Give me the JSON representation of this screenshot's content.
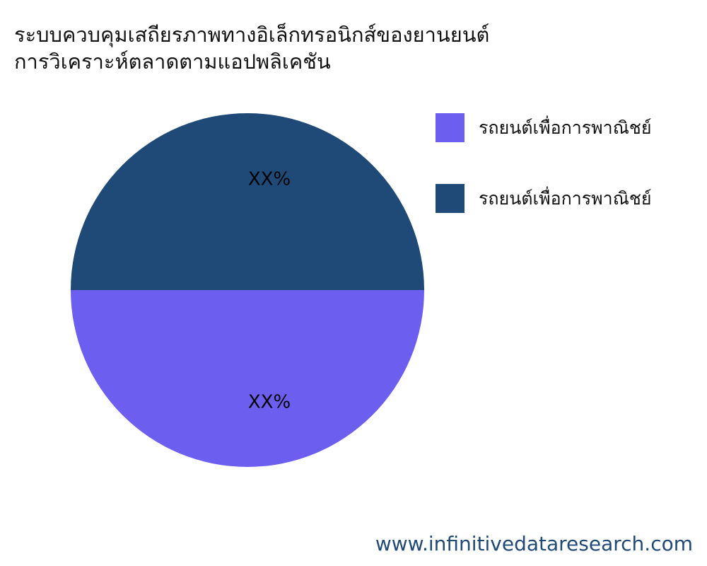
{
  "chart_data": {
    "type": "pie",
    "title": [
      "ระบบควบคุมเสถียรภาพทางอิเล็กทรอนิกส์ของยานยนต์",
      "การวิเคราะห์ตลาดตามแอปพลิเคชัน"
    ],
    "slices": [
      {
        "name": "รถยนต์เพื่อการพาณิชย์",
        "value": 50,
        "label": "XX%",
        "color": "#6c5ff0"
      },
      {
        "name": "รถยนต์เพื่อการพาณิชย์",
        "value": 50,
        "label": "XX%",
        "color": "#1f4a78"
      }
    ],
    "legend_position": "right"
  },
  "footer": "www.infinitivedataresearch.com"
}
